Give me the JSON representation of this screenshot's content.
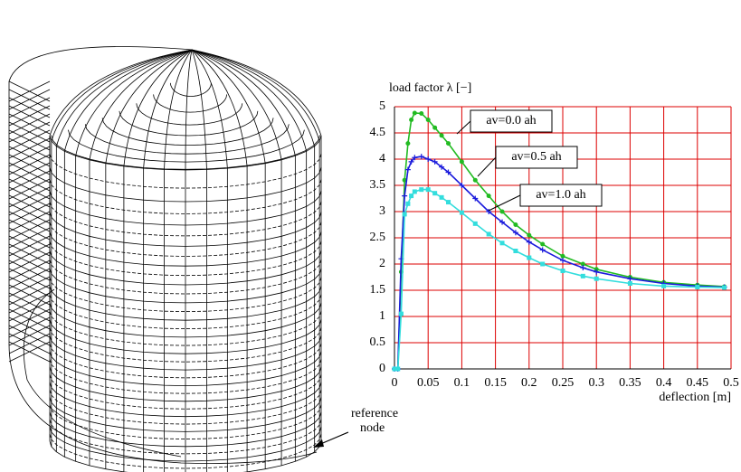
{
  "chart_data": {
    "type": "line",
    "y_label": "load factor λ [−]",
    "x_label": "deflection [m]",
    "x": [
      0,
      0.005,
      0.01,
      0.015,
      0.02,
      0.025,
      0.03,
      0.04,
      0.05,
      0.06,
      0.07,
      0.08,
      0.1,
      0.12,
      0.14,
      0.16,
      0.18,
      0.2,
      0.22,
      0.25,
      0.28,
      0.3,
      0.35,
      0.4,
      0.45,
      0.49
    ],
    "series": [
      {
        "name": "av=0.0 ah",
        "color": "#22bb22",
        "values": [
          0,
          0,
          1.85,
          3.6,
          4.3,
          4.75,
          4.88,
          4.87,
          4.75,
          4.6,
          4.45,
          4.3,
          3.95,
          3.6,
          3.3,
          3.0,
          2.75,
          2.55,
          2.38,
          2.15,
          2.0,
          1.9,
          1.75,
          1.65,
          1.6,
          1.57
        ]
      },
      {
        "name": "av=0.5 ah",
        "color": "#1a1adc",
        "values": [
          0,
          0,
          2.1,
          3.3,
          3.8,
          3.95,
          4.03,
          4.05,
          4.0,
          3.95,
          3.85,
          3.75,
          3.5,
          3.25,
          3.0,
          2.8,
          2.6,
          2.42,
          2.27,
          2.07,
          1.93,
          1.85,
          1.72,
          1.63,
          1.58,
          1.56
        ]
      },
      {
        "name": "av=1.0 ah",
        "color": "#33dddd",
        "values": [
          0,
          0,
          1.05,
          2.95,
          3.15,
          3.3,
          3.38,
          3.42,
          3.42,
          3.35,
          3.27,
          3.18,
          2.98,
          2.77,
          2.57,
          2.4,
          2.25,
          2.12,
          2.0,
          1.87,
          1.77,
          1.72,
          1.63,
          1.58,
          1.56,
          1.55
        ]
      }
    ],
    "xlim": [
      0,
      0.5
    ],
    "ylim": [
      0,
      5
    ],
    "xticks": [
      0,
      0.05,
      0.1,
      0.15,
      0.2,
      0.25,
      0.3,
      0.35,
      0.4,
      0.45,
      0.5
    ],
    "yticks": [
      0,
      0.5,
      1,
      1.5,
      2,
      2.5,
      3,
      3.5,
      4,
      4.5,
      5
    ],
    "grid": true,
    "grid_color": "#dd0000"
  },
  "mesh": {
    "annotation": [
      "reference",
      "node"
    ]
  }
}
